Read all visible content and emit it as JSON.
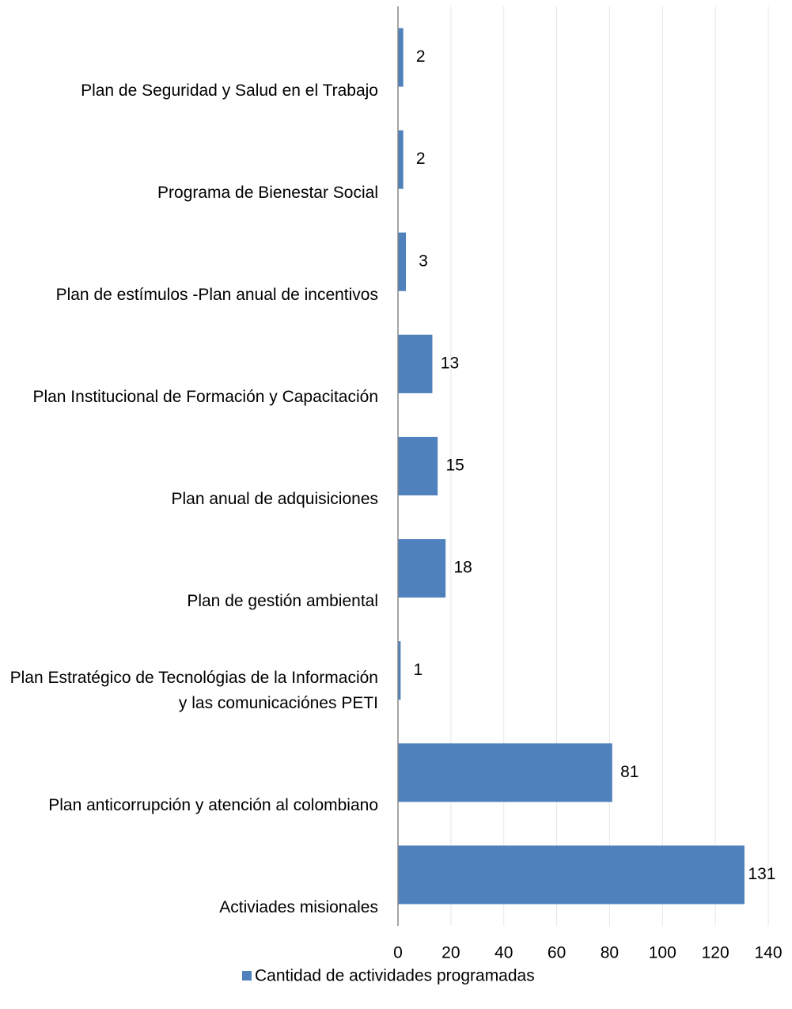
{
  "chart_data": {
    "type": "bar",
    "orientation": "horizontal",
    "categories": [
      "Plan de Seguridad y Salud en el Trabajo",
      "Programa de Bienestar Social",
      "Plan de estímulos -Plan anual de incentivos",
      "Plan Institucional de Formación y Capacitación",
      "Plan anual de adquisiciones",
      "Plan de gestión ambiental",
      "Plan Estratégico de Tecnológias de la Información y las comunicaciónes PETI",
      "Plan anticorrupción y atención al colombiano",
      "Activiades misionales"
    ],
    "series": [
      {
        "name": "Cantidad de actividades programadas",
        "color": "#4f81bd",
        "values": [
          2,
          2,
          3,
          13,
          15,
          18,
          1,
          81,
          131
        ]
      }
    ],
    "xlim": [
      0,
      140
    ],
    "xticks": [
      0,
      20,
      40,
      60,
      80,
      100,
      120,
      140
    ],
    "grid": true,
    "legend": "bottom"
  }
}
